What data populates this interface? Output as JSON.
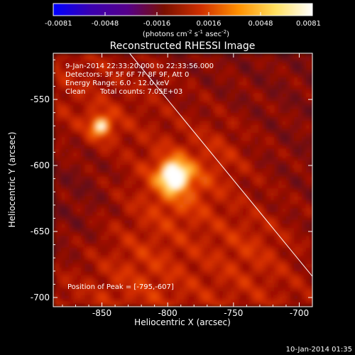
{
  "colorbar": {
    "ticks": [
      "-0.0081",
      "-0.0048",
      "-0.0016",
      "0.0016",
      "0.0048",
      "0.0081"
    ],
    "unit_parts": [
      "(photons cm",
      "-2",
      " s",
      "-1",
      " asec",
      "-2",
      ")"
    ],
    "colors": [
      "#0000ff",
      "#3a00b0",
      "#55008a",
      "#7a1000",
      "#d03000",
      "#ff9000",
      "#ffe060",
      "#ffffff"
    ]
  },
  "info": {
    "time_range": "9-Jan-2014 22:33:20.000 to 22:33:56.000",
    "detectors": "Detectors: 3F 5F 6F 7F 8F 9F, Att 0",
    "energy": "Energy Range: 6.0 - 12.0 keV",
    "clean": "Clean",
    "total_counts": "Total counts: 7.05E+03",
    "peak": "Position of Peak = [-795,-607]"
  },
  "footer": {
    "timestamp": "10-Jan-2014 01:35"
  },
  "chart_data": {
    "type": "heatmap",
    "title": "Reconstructed RHESSI Image",
    "xlabel": "Heliocentric X (arcsec)",
    "ylabel": "Heliocentric Y (arcsec)",
    "xlim": [
      -887,
      -690
    ],
    "ylim": [
      -707,
      -515
    ],
    "xticks": [
      -850,
      -800,
      -750,
      -700
    ],
    "xtick_labels": [
      "-850",
      "-800",
      "-750",
      "-700"
    ],
    "yticks": [
      -550,
      -600,
      -650,
      -700
    ],
    "ytick_labels": [
      "-550",
      "-600",
      "-650",
      "-700"
    ],
    "color_range": [
      -0.0081,
      0.0081
    ],
    "peak_position": [
      -795,
      -607
    ],
    "peak_value": 0.0081,
    "secondary_source": {
      "x": -851,
      "y": -570,
      "value": 0.0055
    },
    "limb_line": {
      "from": [
        -829,
        -515
      ],
      "to": [
        -690,
        -684
      ]
    }
  }
}
